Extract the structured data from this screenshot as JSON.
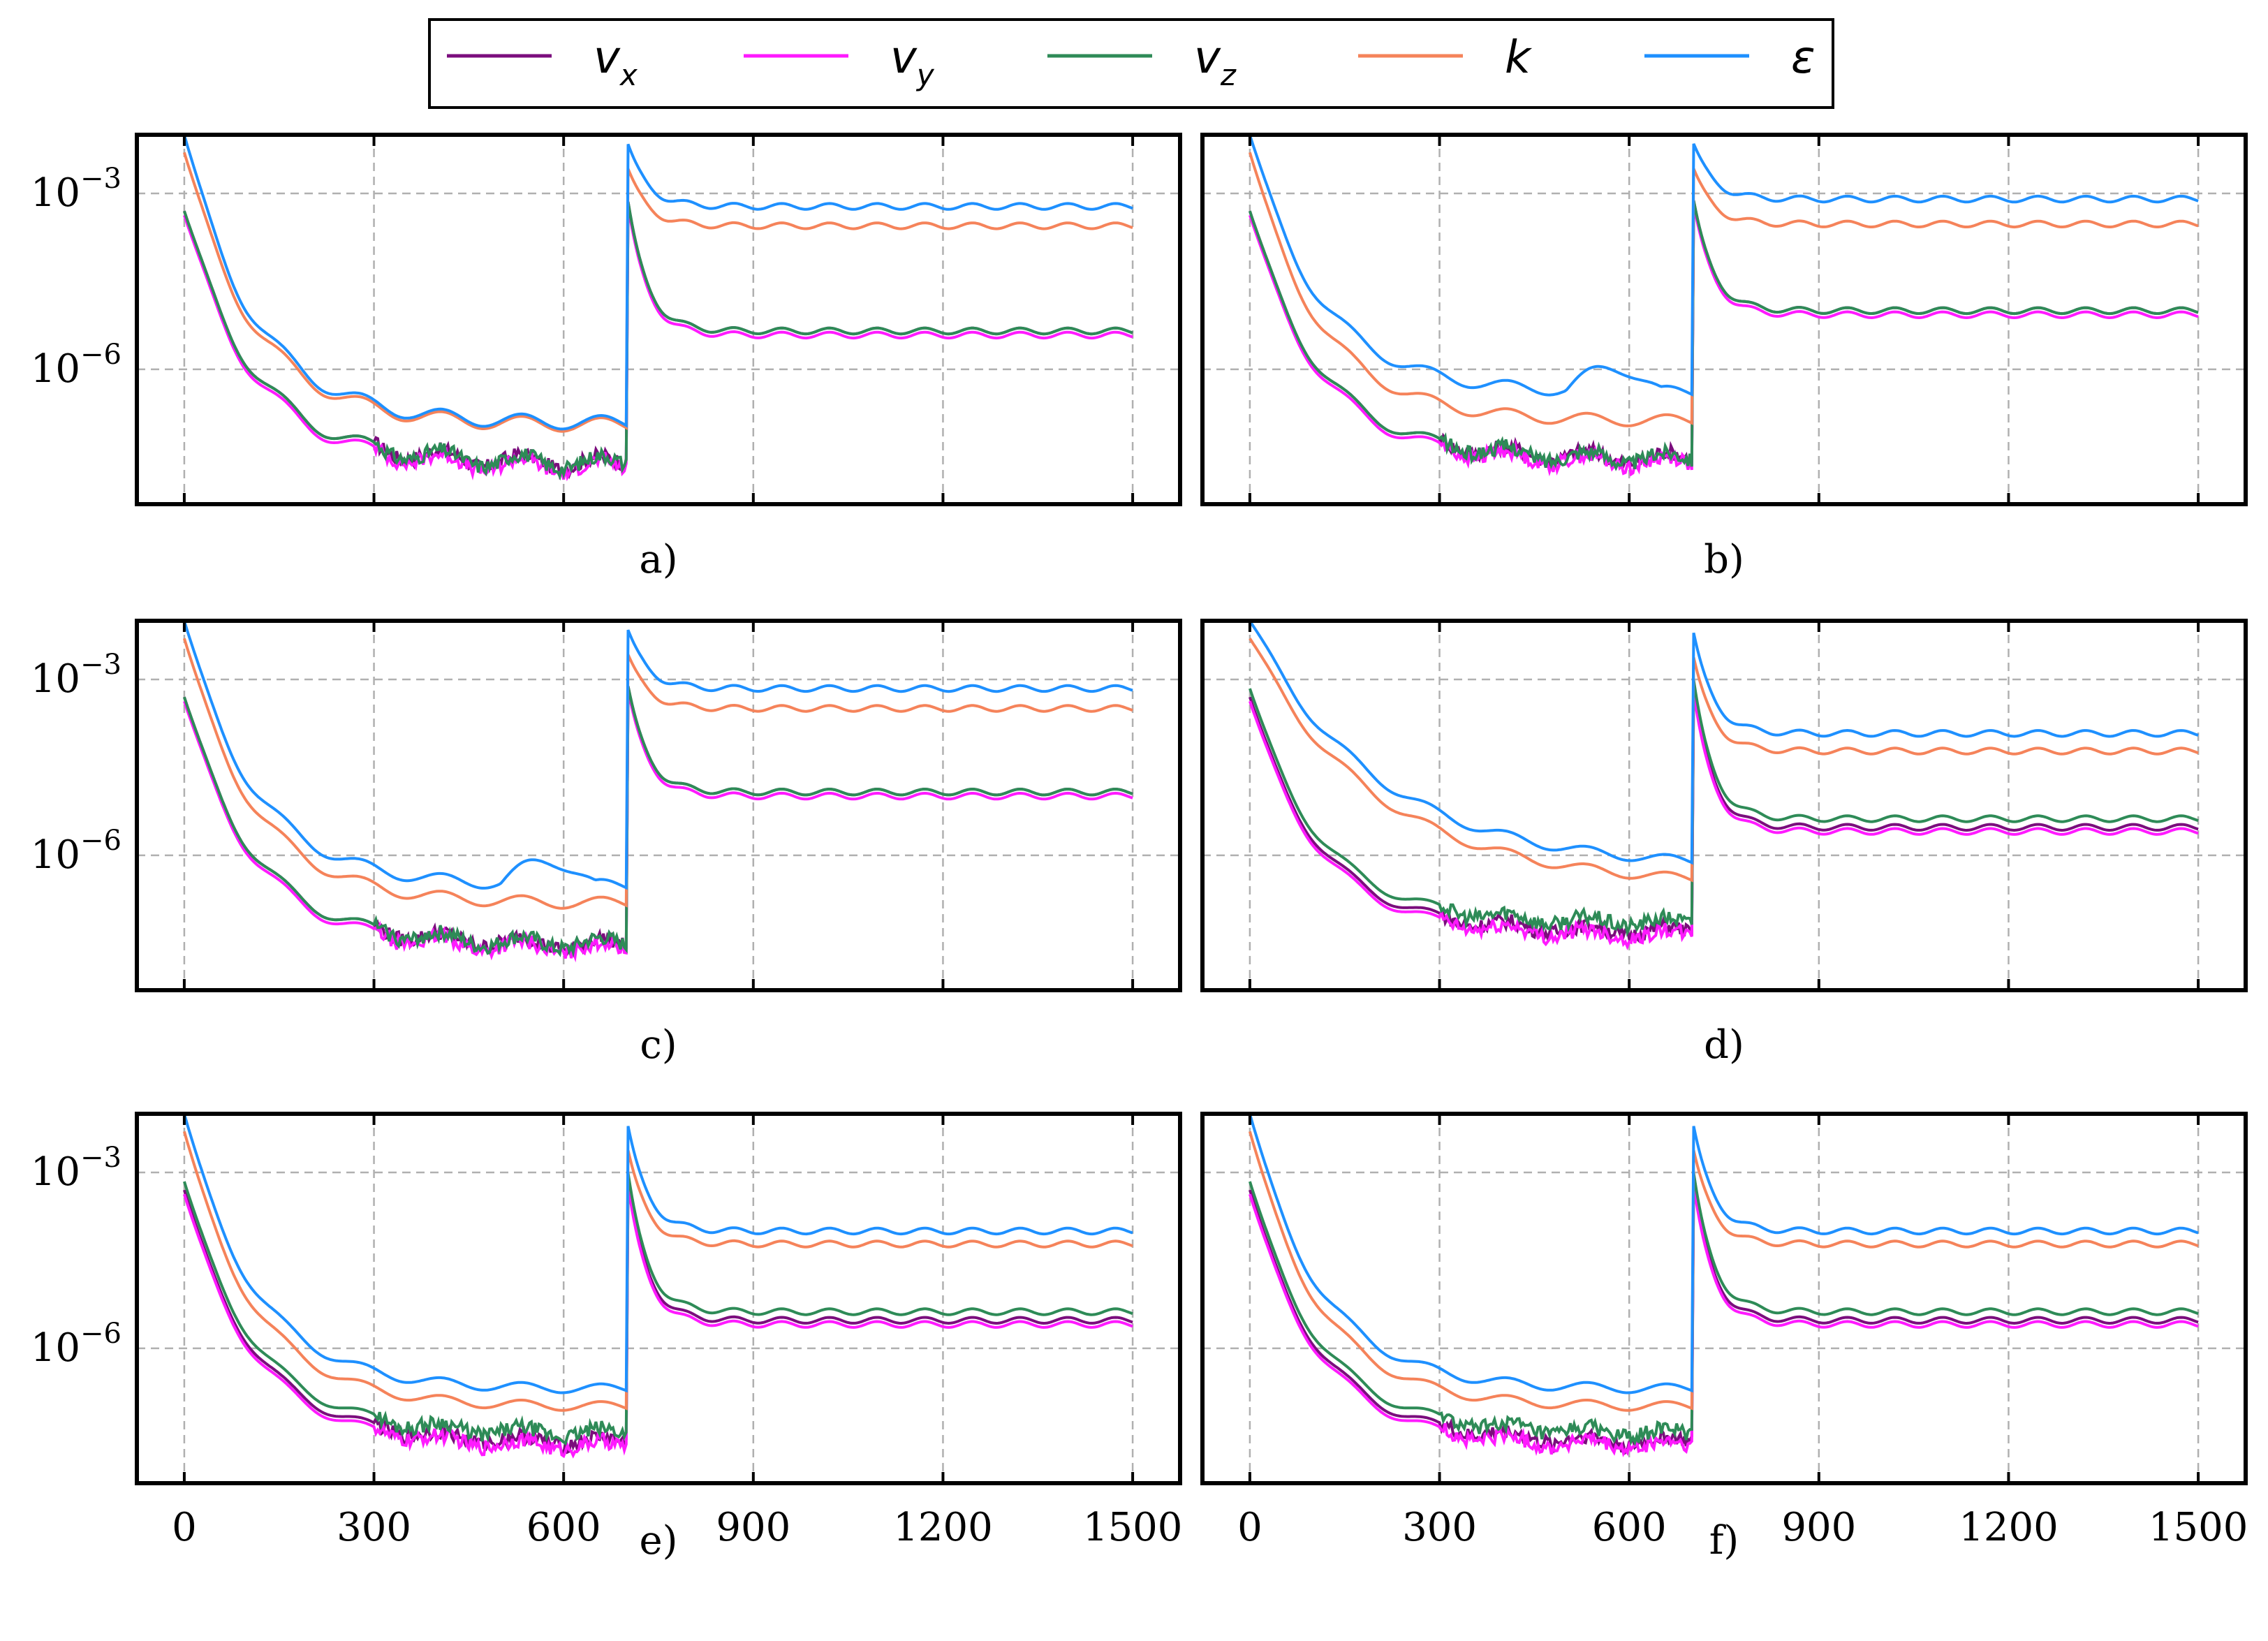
{
  "figure": {
    "legend": [
      {
        "symbol": "v",
        "subscript": "x",
        "color": "#7b0d7d"
      },
      {
        "symbol": "v",
        "subscript": "y",
        "color": "#ff1aff"
      },
      {
        "symbol": "v",
        "subscript": "z",
        "color": "#2e8b57"
      },
      {
        "symbol": "k",
        "subscript": "",
        "color": "#f5835a"
      },
      {
        "symbol": "ε",
        "subscript": "",
        "color": "#1e90ff"
      }
    ],
    "y_ticks": [
      {
        "base": "10",
        "exp": "−3",
        "value": 0.001
      },
      {
        "base": "10",
        "exp": "−6",
        "value": 1e-06
      }
    ],
    "x_ticks": [
      "0",
      "300",
      "600",
      "900",
      "1200",
      "1500"
    ]
  },
  "chart_data": [
    {
      "panel": "a)",
      "type": "line",
      "xlim": [
        -75,
        1575
      ],
      "ylim": [
        5e-09,
        0.01
      ],
      "yscale": "log",
      "params": {
        "spike": 700,
        "base_v": 2.5e-08,
        "base_k": 1.1e-07,
        "base_e": 1.2e-07,
        "bump": 0,
        "after_v": 4.5e-06,
        "after_k": 0.00028,
        "after_e": 0.0006,
        "vz_sep": 1.0,
        "osc": 0.12,
        "late_drop": 1.0
      }
    },
    {
      "panel": "b)",
      "type": "line",
      "xlim": [
        -75,
        1575
      ],
      "ylim": [
        5e-09,
        0.01
      ],
      "yscale": "log",
      "params": {
        "spike": 700,
        "base_v": 3e-08,
        "base_k": 1.3e-07,
        "base_e": 4e-07,
        "bump": 1,
        "after_v": 1e-05,
        "after_k": 0.0003,
        "after_e": 0.0008,
        "vz_sep": 1.0,
        "osc": 0.1,
        "late_drop": 1.0
      }
    },
    {
      "panel": "c)",
      "type": "line",
      "xlim": [
        -75,
        1575
      ],
      "ylim": [
        5e-09,
        0.01
      ],
      "yscale": "log",
      "params": {
        "spike": 700,
        "base_v": 3e-08,
        "base_k": 1.5e-07,
        "base_e": 3e-07,
        "bump": 1,
        "after_v": 1.2e-05,
        "after_k": 0.00032,
        "after_e": 0.0007,
        "vz_sep": 1.0,
        "osc": 0.1,
        "late_drop": 1.0
      }
    },
    {
      "panel": "d)",
      "type": "line",
      "xlim": [
        -75,
        1575
      ],
      "ylim": [
        5e-09,
        0.01
      ],
      "yscale": "log",
      "params": {
        "spike": 700,
        "base_v": 5e-08,
        "base_k": 3e-07,
        "base_e": 6e-07,
        "bump": 0,
        "after_v": 3e-06,
        "after_k": 6e-05,
        "after_e": 0.00012,
        "vz_sep": 1.4,
        "osc": 0.08,
        "late_drop": 0.55
      }
    },
    {
      "panel": "e)",
      "type": "line",
      "xlim": [
        -75,
        1575
      ],
      "ylim": [
        5e-09,
        0.01
      ],
      "yscale": "log",
      "params": {
        "spike": 700,
        "base_v": 2.5e-08,
        "base_k": 1e-07,
        "base_e": 2e-07,
        "bump": 0,
        "after_v": 3e-06,
        "after_k": 6e-05,
        "after_e": 0.0001,
        "vz_sep": 1.4,
        "osc": 0.08,
        "late_drop": 1.0
      }
    },
    {
      "panel": "f)",
      "type": "line",
      "xlim": [
        -75,
        1575
      ],
      "ylim": [
        5e-09,
        0.01
      ],
      "yscale": "log",
      "params": {
        "spike": 700,
        "base_v": 2.5e-08,
        "base_k": 1e-07,
        "base_e": 2e-07,
        "bump": 0,
        "after_v": 3e-06,
        "after_k": 6e-05,
        "after_e": 0.0001,
        "vz_sep": 1.4,
        "osc": 0.08,
        "late_drop": 1.0
      }
    }
  ]
}
